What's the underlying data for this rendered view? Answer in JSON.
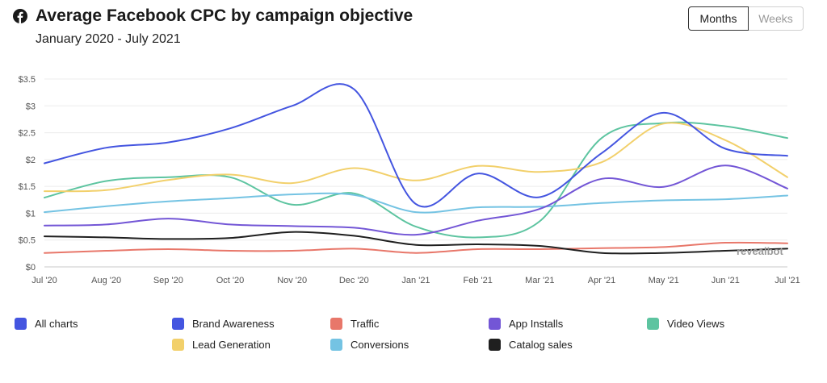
{
  "header": {
    "title": "Average Facebook CPC by campaign objective",
    "subtitle": "January 2020 - July 2021",
    "icon": "facebook-icon"
  },
  "toggle": {
    "months_label": "Months",
    "weeks_label": "Weeks",
    "selected": "Months"
  },
  "watermark": "revealbot",
  "colors": {
    "all_charts": "#4455e0",
    "brand_awareness": "#4455e0",
    "traffic": "#e8776a",
    "app_installs": "#7356d6",
    "video_views": "#5dc4a0",
    "lead_generation": "#f2d06b",
    "conversions": "#74c3e3",
    "catalog_sales": "#1f1f1f"
  },
  "legend": [
    {
      "label": "All charts",
      "color": "#4455e0"
    },
    {
      "label": "Brand Awareness",
      "color": "#4455e0"
    },
    {
      "label": "Traffic",
      "color": "#e8776a"
    },
    {
      "label": "App Installs",
      "color": "#7356d6"
    },
    {
      "label": "Video Views",
      "color": "#5dc4a0"
    },
    {
      "label": "Lead Generation",
      "color": "#f2d06b"
    },
    {
      "label": "Conversions",
      "color": "#74c3e3"
    },
    {
      "label": "Catalog sales",
      "color": "#1f1f1f"
    }
  ],
  "chart_data": {
    "type": "line",
    "title": "Average Facebook CPC by campaign objective",
    "subtitle": "January 2020 - July 2021",
    "xlabel": "",
    "ylabel": "",
    "x": [
      "Jul '20",
      "Aug '20",
      "Sep '20",
      "Oct '20",
      "Nov '20",
      "Dec '20",
      "Jan '21",
      "Feb '21",
      "Mar '21",
      "Apr '21",
      "May '21",
      "Jun '21",
      "Jul '21"
    ],
    "yticks": [
      "$0",
      "$0.5",
      "$1",
      "$1.5",
      "$2",
      "$2.5",
      "$3",
      "$3.5"
    ],
    "ylim": [
      0,
      3.5
    ],
    "grid": true,
    "legend_position": "bottom",
    "series": [
      {
        "name": "Video Views",
        "color": "#5dc4a0",
        "values": [
          1.29,
          1.6,
          1.67,
          1.67,
          1.16,
          1.37,
          0.75,
          0.55,
          0.85,
          2.4,
          2.68,
          2.62,
          2.4
        ]
      },
      {
        "name": "Lead Generation",
        "color": "#f2d06b",
        "values": [
          1.41,
          1.43,
          1.62,
          1.72,
          1.56,
          1.84,
          1.61,
          1.88,
          1.77,
          1.95,
          2.67,
          2.36,
          1.67
        ]
      },
      {
        "name": "Conversions",
        "color": "#74c3e3",
        "values": [
          1.02,
          1.13,
          1.22,
          1.28,
          1.35,
          1.34,
          1.02,
          1.11,
          1.12,
          1.19,
          1.24,
          1.26,
          1.33
        ]
      },
      {
        "name": "App Installs",
        "color": "#7356d6",
        "values": [
          0.77,
          0.79,
          0.9,
          0.79,
          0.76,
          0.73,
          0.6,
          0.86,
          1.08,
          1.64,
          1.49,
          1.89,
          1.46
        ]
      },
      {
        "name": "Traffic",
        "color": "#e8776a",
        "values": [
          0.26,
          0.3,
          0.33,
          0.3,
          0.3,
          0.34,
          0.26,
          0.33,
          0.33,
          0.35,
          0.37,
          0.45,
          0.44
        ]
      },
      {
        "name": "Catalog sales",
        "color": "#1f1f1f",
        "values": [
          0.57,
          0.55,
          0.52,
          0.54,
          0.65,
          0.58,
          0.41,
          0.42,
          0.39,
          0.26,
          0.26,
          0.3,
          0.34
        ]
      },
      {
        "name": "Brand Awareness",
        "color": "#4455e0",
        "values": [
          1.93,
          2.22,
          2.32,
          2.58,
          3.0,
          3.31,
          1.17,
          1.74,
          1.3,
          2.12,
          2.87,
          2.2,
          2.07
        ]
      }
    ]
  }
}
